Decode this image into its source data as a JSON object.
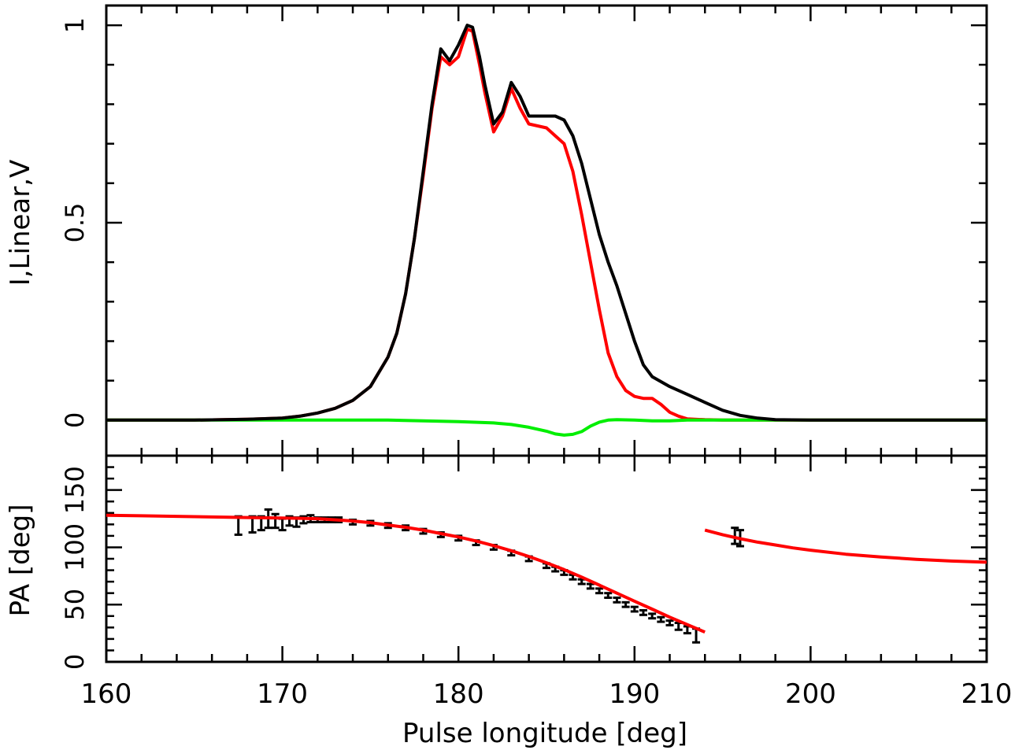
{
  "chart_data": [
    {
      "type": "line",
      "panel": "top",
      "title": "",
      "xlabel": "",
      "ylabel": "I,Linear,V",
      "xlim": [
        160,
        210
      ],
      "ylim": [
        -0.09,
        1.05
      ],
      "yticks": [
        0,
        0.5,
        1
      ],
      "ytick_labels": [
        "0",
        "0.5",
        "1"
      ],
      "colors": {
        "I": "#000000",
        "Linear": "#ff0000",
        "V": "#00ee00"
      },
      "series": [
        {
          "key": "I",
          "x": [
            160,
            165,
            168,
            170,
            171,
            172,
            173,
            174,
            175,
            176,
            176.5,
            177,
            177.5,
            178,
            178.5,
            179,
            179.5,
            180,
            180.5,
            180.8,
            181.2,
            181.5,
            182,
            182.5,
            183,
            183.5,
            184,
            185,
            185.5,
            186,
            186.5,
            187,
            187.5,
            188,
            188.5,
            189,
            189.5,
            190,
            190.5,
            191,
            192,
            193,
            194,
            195,
            196,
            197,
            198,
            200,
            210
          ],
          "y": [
            0,
            0,
            0.002,
            0.005,
            0.01,
            0.018,
            0.03,
            0.05,
            0.085,
            0.16,
            0.22,
            0.32,
            0.46,
            0.63,
            0.8,
            0.94,
            0.91,
            0.95,
            1.0,
            0.995,
            0.92,
            0.85,
            0.75,
            0.78,
            0.855,
            0.82,
            0.77,
            0.77,
            0.77,
            0.76,
            0.72,
            0.65,
            0.56,
            0.47,
            0.4,
            0.34,
            0.27,
            0.2,
            0.14,
            0.11,
            0.085,
            0.065,
            0.045,
            0.025,
            0.012,
            0.005,
            0.001,
            0,
            0
          ]
        },
        {
          "key": "Linear",
          "x": [
            160,
            165,
            168,
            170,
            171,
            172,
            173,
            174,
            175,
            176,
            176.5,
            177,
            177.5,
            178,
            178.5,
            179,
            179.5,
            180,
            180.5,
            180.8,
            181.2,
            181.5,
            182,
            182.5,
            183,
            183.5,
            184,
            185,
            185.5,
            186,
            186.5,
            187,
            187.5,
            188,
            188.5,
            189,
            189.5,
            190,
            190.5,
            191,
            191.5,
            192,
            192.5,
            193,
            194,
            195,
            200,
            210
          ],
          "y": [
            0,
            0,
            0.002,
            0.005,
            0.01,
            0.018,
            0.03,
            0.05,
            0.085,
            0.16,
            0.22,
            0.32,
            0.46,
            0.62,
            0.79,
            0.92,
            0.9,
            0.92,
            0.99,
            0.985,
            0.9,
            0.83,
            0.73,
            0.77,
            0.84,
            0.79,
            0.75,
            0.74,
            0.72,
            0.7,
            0.63,
            0.52,
            0.4,
            0.28,
            0.17,
            0.11,
            0.075,
            0.06,
            0.055,
            0.055,
            0.04,
            0.02,
            0.01,
            0.003,
            0.001,
            0,
            0,
            0
          ]
        },
        {
          "key": "V",
          "x": [
            160,
            176,
            178,
            180,
            182,
            183,
            184,
            185,
            185.5,
            186,
            186.5,
            187,
            187.5,
            188,
            188.5,
            189,
            190,
            191,
            192,
            193,
            195,
            210
          ],
          "y": [
            0,
            0,
            -0.002,
            -0.004,
            -0.007,
            -0.011,
            -0.018,
            -0.028,
            -0.035,
            -0.038,
            -0.036,
            -0.029,
            -0.015,
            -0.005,
            0,
            0.001,
            0,
            -0.002,
            -0.002,
            0,
            0,
            0
          ]
        }
      ]
    },
    {
      "type": "scatter",
      "panel": "bottom",
      "title": "",
      "xlabel": "Pulse longitude [deg]",
      "ylabel": "PA [deg]",
      "xlim": [
        160,
        210
      ],
      "ylim": [
        0,
        180
      ],
      "xticks": [
        160,
        170,
        180,
        190,
        200,
        210
      ],
      "xtick_labels": [
        "160",
        "170",
        "180",
        "190",
        "200",
        "210"
      ],
      "yticks": [
        0,
        50,
        100,
        150
      ],
      "ytick_labels": [
        "0",
        "50",
        "100",
        "150"
      ],
      "colors": {
        "points": "#000000",
        "fit": "#ff0000"
      },
      "series": [
        {
          "key": "PA-measured",
          "x": [
            167.5,
            168.3,
            168.8,
            169.2,
            169.6,
            170.0,
            170.4,
            170.8,
            171.2,
            171.6,
            172.0,
            172.4,
            172.8,
            173.2,
            174.0,
            175.0,
            176.0,
            177.0,
            178.0,
            179.0,
            180.0,
            181.0,
            182.0,
            183.0,
            184.0,
            185.0,
            185.5,
            186.0,
            186.5,
            187.0,
            187.5,
            188.0,
            188.5,
            189.0,
            189.5,
            190.0,
            190.5,
            191.0,
            191.5,
            192.0,
            192.5,
            193.0,
            193.5,
            195.7,
            196.0
          ],
          "y": [
            119,
            120,
            121,
            125,
            123,
            120,
            123,
            122,
            124,
            125,
            124,
            124,
            124,
            124,
            122,
            121,
            119,
            117,
            114,
            111,
            108,
            104,
            100,
            95,
            90,
            84,
            81,
            78,
            74,
            70,
            66,
            62,
            58,
            54,
            50,
            46,
            43,
            40,
            37,
            34,
            31,
            28,
            23,
            110,
            108
          ],
          "err": [
            8,
            7,
            6,
            8,
            6,
            5,
            4,
            4,
            3,
            3,
            2,
            2,
            2,
            2,
            2,
            2,
            2,
            2,
            2,
            2,
            2,
            2,
            2,
            2,
            2,
            2,
            2,
            2,
            2,
            2,
            2,
            2,
            2,
            2,
            2,
            2,
            2,
            2,
            2,
            2,
            3,
            3,
            6,
            7,
            7
          ]
        },
        {
          "key": "PA-fit-1",
          "x": [
            160,
            162,
            164,
            166,
            168,
            170,
            171,
            172,
            173,
            174,
            175,
            176,
            177,
            178,
            179,
            180,
            181,
            182,
            183,
            184,
            185,
            186,
            187,
            188,
            189,
            190,
            191,
            192,
            193,
            194
          ],
          "y": [
            128,
            127.5,
            127,
            126.5,
            126,
            125.5,
            125.3,
            125,
            124,
            123,
            121.5,
            119.5,
            117.5,
            115,
            112,
            109,
            105.5,
            101.5,
            97,
            92,
            86.5,
            80.5,
            74,
            67,
            60,
            53,
            46,
            39,
            32.5,
            26
          ]
        },
        {
          "key": "PA-fit-2",
          "x": [
            194,
            195,
            196,
            197,
            198,
            199,
            200,
            202,
            204,
            206,
            208,
            210
          ],
          "y": [
            115,
            111,
            107.5,
            104.5,
            102,
            99.5,
            97.5,
            94,
            91.5,
            89.5,
            88,
            87
          ]
        }
      ]
    }
  ]
}
